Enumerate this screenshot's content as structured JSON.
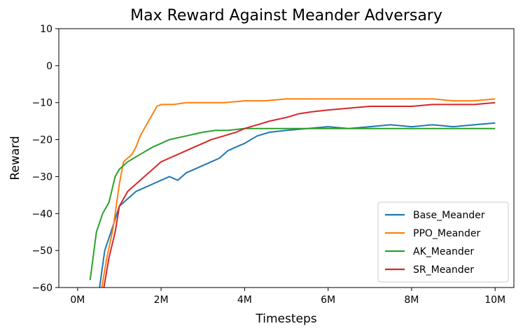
{
  "chart_data": {
    "type": "line",
    "title": "Max Reward Against Meander Adversary",
    "xlabel": "Timesteps",
    "ylabel": "Reward",
    "xlim": [
      -0.45,
      10.45
    ],
    "ylim": [
      -60,
      10
    ],
    "x_ticks": [
      0,
      2,
      4,
      6,
      8,
      10
    ],
    "x_tick_labels": [
      "0M",
      "2M",
      "4M",
      "6M",
      "8M",
      "10M"
    ],
    "y_ticks": [
      10,
      0,
      -10,
      -20,
      -30,
      -40,
      -50,
      -60
    ],
    "y_tick_labels": [
      "10",
      "0",
      "−10",
      "−20",
      "−30",
      "−40",
      "−50",
      "−60"
    ],
    "grid": false,
    "legend_position": "lower-right",
    "series": [
      {
        "name": "Base_Meander",
        "color": "#1f77b4",
        "x": [
          0.5,
          0.65,
          0.8,
          1.0,
          1.2,
          1.4,
          1.6,
          1.8,
          2.0,
          2.2,
          2.4,
          2.6,
          2.8,
          3.0,
          3.2,
          3.4,
          3.6,
          3.8,
          4.0,
          4.3,
          4.6,
          5.0,
          5.5,
          6.0,
          6.5,
          7.0,
          7.5,
          8.0,
          8.5,
          9.0,
          9.5,
          10.0
        ],
        "y": [
          -62,
          -50,
          -45,
          -38,
          -36,
          -34,
          -33,
          -32,
          -31,
          -30,
          -31,
          -29,
          -28,
          -27,
          -26,
          -25,
          -23,
          -22,
          -21,
          -19,
          -18,
          -17.5,
          -17,
          -16.5,
          -17,
          -16.5,
          -16,
          -16.5,
          -16,
          -16.5,
          -16,
          -15.5
        ]
      },
      {
        "name": "PPO_Meander",
        "color": "#ff7f0e",
        "x": [
          0.55,
          0.7,
          0.85,
          1.0,
          1.1,
          1.2,
          1.3,
          1.4,
          1.5,
          1.6,
          1.7,
          1.8,
          1.9,
          2.0,
          2.3,
          2.6,
          3.0,
          3.5,
          4.0,
          4.5,
          5.0,
          5.5,
          6.0,
          6.5,
          7.0,
          7.5,
          8.0,
          8.5,
          9.0,
          9.5,
          10.0
        ],
        "y": [
          -62,
          -52,
          -44,
          -32,
          -26,
          -25,
          -24,
          -22,
          -19,
          -17,
          -15,
          -13,
          -11,
          -10.5,
          -10.5,
          -10,
          -10,
          -10,
          -9.5,
          -9.5,
          -9,
          -9,
          -9,
          -9,
          -9,
          -9,
          -9,
          -9,
          -9.5,
          -9.5,
          -9
        ]
      },
      {
        "name": "AK_Meander",
        "color": "#2ca02c",
        "x": [
          0.3,
          0.45,
          0.6,
          0.75,
          0.9,
          1.0,
          1.1,
          1.2,
          1.35,
          1.5,
          1.65,
          1.8,
          2.0,
          2.2,
          2.4,
          2.6,
          2.8,
          3.0,
          3.3,
          3.6,
          4.0,
          4.5,
          5.0,
          5.5,
          6.0,
          6.5,
          7.0,
          7.5,
          8.0,
          8.5,
          9.0,
          9.5,
          10.0
        ],
        "y": [
          -58,
          -45,
          -40,
          -37,
          -30,
          -28,
          -27,
          -26,
          -25,
          -24,
          -23,
          -22,
          -21,
          -20,
          -19.5,
          -19,
          -18.5,
          -18,
          -17.5,
          -17.5,
          -17,
          -17,
          -17,
          -17,
          -17,
          -17,
          -17,
          -17,
          -17,
          -17,
          -17,
          -17,
          -17
        ]
      },
      {
        "name": "SR_Meander",
        "color": "#d62728",
        "x": [
          0.6,
          0.75,
          0.9,
          1.0,
          1.2,
          1.4,
          1.6,
          1.8,
          2.0,
          2.2,
          2.4,
          2.6,
          2.8,
          3.0,
          3.2,
          3.5,
          3.8,
          4.0,
          4.3,
          4.6,
          5.0,
          5.3,
          5.6,
          6.0,
          6.5,
          7.0,
          7.5,
          8.0,
          8.5,
          9.0,
          9.5,
          10.0
        ],
        "y": [
          -62,
          -52,
          -45,
          -38,
          -34,
          -32,
          -30,
          -28,
          -26,
          -25,
          -24,
          -23,
          -22,
          -21,
          -20,
          -19,
          -18,
          -17,
          -16,
          -15,
          -14,
          -13,
          -12.5,
          -12,
          -11.5,
          -11,
          -11,
          -11,
          -10.5,
          -10.5,
          -10.5,
          -10
        ]
      }
    ]
  }
}
